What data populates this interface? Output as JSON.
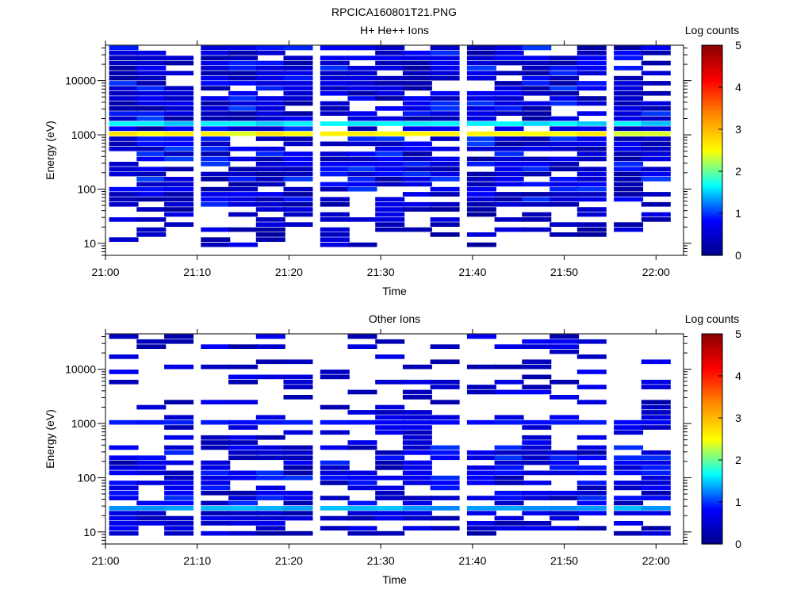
{
  "figure_title": "RPCICA160801T21.PNG",
  "colormap": [
    "#00008b",
    "#0000ff",
    "#00ffff",
    "#ffff00",
    "#ff8c00",
    "#ff0000",
    "#8b0000"
  ],
  "chart_data": [
    {
      "type": "heatmap",
      "title": "H+ He++ Ions",
      "xlabel": "Time",
      "ylabel": "Energy (eV)",
      "colorbar_label": "Log counts",
      "colorbar_range": [
        0,
        5
      ],
      "colorbar_ticks": [
        "0",
        "1",
        "2",
        "3",
        "4",
        "5"
      ],
      "xlim_minutes": [
        0,
        63
      ],
      "x_ticks": [
        "21:00",
        "21:10",
        "21:20",
        "21:30",
        "21:40",
        "21:50",
        "22:00"
      ],
      "ylim_eV": [
        6,
        45000
      ],
      "y_scale": "log",
      "y_ticks": [
        "10",
        "100",
        "1000",
        "10000"
      ],
      "time_bins": [
        "21:02",
        "21:05",
        "21:08",
        "21:12",
        "21:15",
        "21:18",
        "21:21",
        "21:25",
        "21:28",
        "21:31",
        "21:34",
        "21:37",
        "21:41",
        "21:44",
        "21:47",
        "21:50",
        "21:53",
        "21:57",
        "22:00"
      ],
      "energy_bins_eV": [
        9.4,
        11.7,
        14.5,
        17.9,
        22.2,
        27.5,
        34.1,
        42.2,
        52.3,
        64.8,
        80.3,
        99.5,
        123,
        153,
        189,
        234,
        290,
        360,
        446,
        552,
        684,
        847,
        1050,
        1300,
        1611,
        1996,
        2474,
        3065,
        3798,
        4706,
        5831,
        7225,
        8953,
        11093,
        13745,
        17031,
        21102,
        26147,
        32399,
        40145
      ],
      "persistent_bands": [
        {
          "energy_eV": 1000,
          "log_counts": 2.6
        },
        {
          "energy_eV": 1611,
          "log_counts": 1.6
        }
      ]
    },
    {
      "type": "heatmap",
      "title": "Other Ions",
      "xlabel": "Time",
      "ylabel": "Energy (eV)",
      "colorbar_label": "Log counts",
      "colorbar_range": [
        0,
        5
      ],
      "colorbar_ticks": [
        "0",
        "1",
        "2",
        "3",
        "4",
        "5"
      ],
      "xlim_minutes": [
        0,
        63
      ],
      "x_ticks": [
        "21:00",
        "21:10",
        "21:20",
        "21:30",
        "21:40",
        "21:50",
        "22:00"
      ],
      "ylim_eV": [
        6,
        45000
      ],
      "y_scale": "log",
      "y_ticks": [
        "10",
        "100",
        "1000",
        "10000"
      ],
      "time_bins": [
        "21:02",
        "21:05",
        "21:08",
        "21:12",
        "21:15",
        "21:18",
        "21:21",
        "21:25",
        "21:28",
        "21:31",
        "21:34",
        "21:37",
        "21:41",
        "21:44",
        "21:47",
        "21:50",
        "21:53",
        "21:57",
        "22:00"
      ],
      "energy_bins_eV": [
        9.4,
        11.7,
        14.5,
        17.9,
        22.2,
        27.5,
        34.1,
        42.2,
        52.3,
        64.8,
        80.3,
        99.5,
        123,
        153,
        189,
        234,
        290,
        360,
        446,
        552,
        684,
        847,
        1050,
        1300,
        1611,
        1996,
        2474,
        3065,
        3798,
        4706,
        5831,
        7225,
        8953,
        11093,
        13745,
        17031,
        21102,
        26147,
        32399,
        40145
      ],
      "persistent_bands": [
        {
          "energy_eV": 29,
          "log_counts": 1.4
        },
        {
          "energy_eV": 1000,
          "log_counts": 0.9
        }
      ]
    }
  ]
}
